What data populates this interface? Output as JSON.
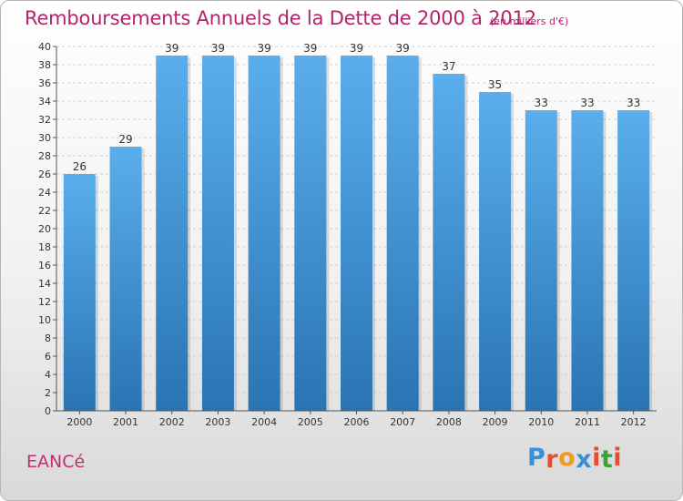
{
  "header": {
    "title": "Remboursements Annuels de la Dette de 2000 à 2012",
    "unit_note": "(en milliers d'€)"
  },
  "footer": {
    "commune_name": "EANCé",
    "brand_letters": [
      "P",
      "r",
      "o",
      "x",
      "i",
      "t",
      "i"
    ],
    "brand_colors": [
      "#3c8fd6",
      "#e64c2e",
      "#f29a1c",
      "#3c8fd6",
      "#e64c2e",
      "#3aa43a",
      "#e64c2e"
    ]
  },
  "colors": {
    "bar_top": "#5aaeec",
    "bar_bottom": "#2a74b3",
    "grid": "#cfcfcf",
    "axis": "#555555",
    "label": "#333333"
  },
  "chart_data": {
    "type": "bar",
    "categories": [
      "2000",
      "2001",
      "2002",
      "2003",
      "2004",
      "2005",
      "2006",
      "2007",
      "2008",
      "2009",
      "2010",
      "2011",
      "2012"
    ],
    "values": [
      26,
      29,
      39,
      39,
      39,
      39,
      39,
      39,
      37,
      35,
      33,
      33,
      33
    ],
    "data_labels": [
      "26",
      "29",
      "39",
      "39",
      "39",
      "39",
      "39",
      "39",
      "37",
      "35",
      "33",
      "33",
      "33"
    ],
    "y_ticks": [
      0,
      2,
      4,
      6,
      8,
      10,
      12,
      14,
      16,
      18,
      20,
      22,
      24,
      26,
      28,
      30,
      32,
      34,
      36,
      38,
      40
    ],
    "ylim": [
      0,
      40
    ],
    "grid": true
  }
}
